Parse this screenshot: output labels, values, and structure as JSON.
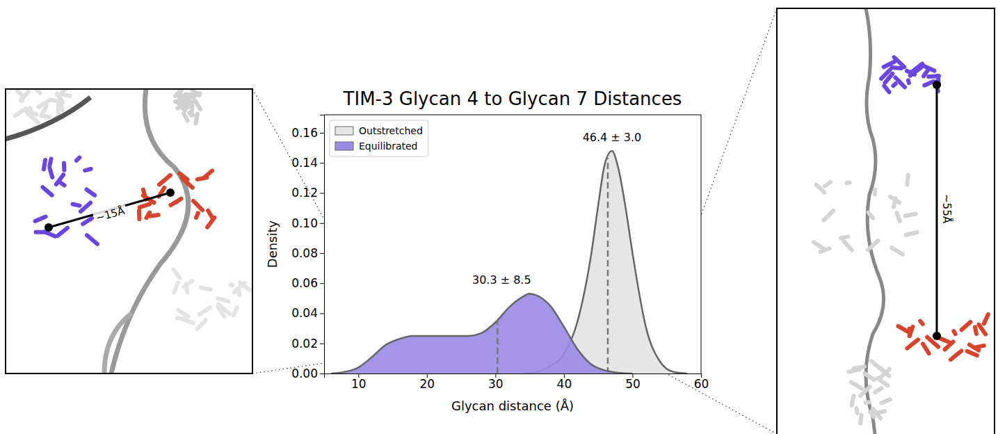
{
  "chart_data": {
    "type": "area",
    "title": "TIM-3 Glycan 4 to Glycan 7 Distances",
    "x_label": "Glycan distance (Å)",
    "y_label": "Density",
    "xlim": [
      5,
      60
    ],
    "xticks": [
      10,
      20,
      30,
      40,
      50,
      60
    ],
    "ylim": [
      0,
      0.172
    ],
    "yticks": [
      {
        "value": 0,
        "label": "0.00"
      },
      {
        "value": 0.02,
        "label": "0.02"
      },
      {
        "value": 0.04,
        "label": "0.04"
      },
      {
        "value": 0.06,
        "label": "0.06"
      },
      {
        "value": 0.08,
        "label": "0.08"
      },
      {
        "value": 0.1,
        "label": "0.10"
      },
      {
        "value": 0.12,
        "label": "0.12"
      },
      {
        "value": 0.14,
        "label": "0.14"
      },
      {
        "value": 0.16,
        "label": "0.16"
      }
    ],
    "legend": "upper left",
    "series": [
      {
        "name": "Outstretched",
        "color": "#e6e6e6",
        "x": [
          34,
          36,
          38,
          40,
          42,
          44,
          45,
          46,
          47,
          48,
          49,
          50,
          52,
          54,
          56,
          58
        ],
        "values": [
          0,
          0.001,
          0.005,
          0.013,
          0.035,
          0.08,
          0.112,
          0.14,
          0.148,
          0.135,
          0.11,
          0.08,
          0.03,
          0.008,
          0.001,
          0
        ],
        "mean": 46.4,
        "label": "46.4 ± 3.0"
      },
      {
        "name": "Equilibrated",
        "color": "#9b8ae6",
        "x": [
          6,
          8,
          10,
          12,
          14,
          16,
          18,
          20,
          22,
          24,
          26,
          28,
          30,
          32,
          34,
          35,
          36,
          38,
          40,
          42,
          44,
          46,
          48,
          50
        ],
        "values": [
          0,
          0.001,
          0.004,
          0.011,
          0.019,
          0.023,
          0.025,
          0.025,
          0.025,
          0.025,
          0.025,
          0.027,
          0.034,
          0.044,
          0.051,
          0.053,
          0.052,
          0.045,
          0.031,
          0.016,
          0.006,
          0.002,
          0.0005,
          0
        ],
        "mean": 30.3,
        "label": "30.3 ± 8.5"
      }
    ]
  },
  "insets": [
    {
      "label": "~15Å",
      "x": 15.7,
      "y": 0.014
    },
    {
      "label": "~55Å",
      "x": 52.1,
      "y": 0.007
    }
  ]
}
